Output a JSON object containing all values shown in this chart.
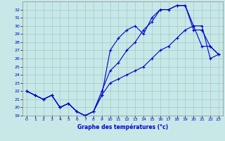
{
  "xlabel": "Graphe des températures (°c)",
  "background_color": "#c8e8e8",
  "grid_color": "#a0c8c8",
  "line_color": "#0000cc",
  "xlim": [
    -0.5,
    23.5
  ],
  "ylim": [
    19,
    33
  ],
  "yticks": [
    19,
    20,
    21,
    22,
    23,
    24,
    25,
    26,
    27,
    28,
    29,
    30,
    31,
    32
  ],
  "xticks": [
    0,
    1,
    2,
    3,
    4,
    5,
    6,
    7,
    8,
    9,
    10,
    11,
    12,
    13,
    14,
    15,
    16,
    17,
    18,
    19,
    20,
    21,
    22,
    23
  ],
  "line1_x": [
    0,
    1,
    2,
    3,
    4,
    5,
    6,
    7,
    8,
    9,
    10,
    11,
    12,
    13,
    14,
    15,
    16,
    17,
    18,
    19,
    20,
    21,
    22,
    23
  ],
  "line1_y": [
    22.0,
    21.5,
    21.0,
    21.5,
    20.0,
    20.5,
    19.5,
    19.0,
    19.5,
    21.5,
    23.0,
    23.5,
    24.0,
    24.5,
    25.0,
    26.0,
    27.0,
    27.5,
    28.5,
    29.5,
    30.0,
    30.0,
    26.0,
    26.5
  ],
  "line2_x": [
    0,
    1,
    2,
    3,
    4,
    5,
    6,
    7,
    8,
    9,
    10,
    11,
    12,
    13,
    14,
    15,
    16,
    17,
    18,
    19,
    20,
    21,
    22,
    23
  ],
  "line2_y": [
    22.0,
    21.5,
    21.0,
    21.5,
    20.0,
    20.5,
    19.5,
    19.0,
    19.5,
    21.5,
    27.0,
    28.5,
    29.5,
    30.0,
    29.0,
    31.0,
    32.0,
    32.0,
    32.5,
    32.5,
    30.0,
    27.5,
    27.5,
    26.5
  ],
  "line3_x": [
    0,
    1,
    2,
    3,
    4,
    5,
    6,
    7,
    8,
    9,
    10,
    11,
    12,
    13,
    14,
    15,
    16,
    17,
    18,
    19,
    20,
    21,
    22,
    23
  ],
  "line3_y": [
    22.0,
    21.5,
    21.0,
    21.5,
    20.0,
    20.5,
    19.5,
    19.0,
    19.5,
    22.0,
    24.5,
    25.5,
    27.0,
    28.0,
    29.5,
    30.5,
    32.0,
    32.0,
    32.5,
    32.5,
    29.5,
    29.5,
    27.5,
    26.5
  ]
}
